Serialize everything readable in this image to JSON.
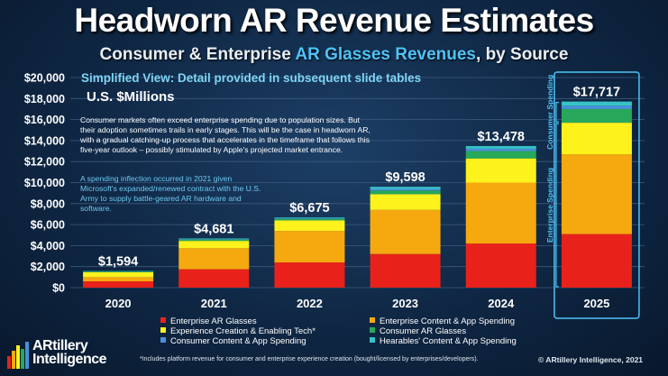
{
  "header": {
    "title": "Headworn AR Revenue Estimates",
    "subtitle_pre": "Consumer & Enterprise ",
    "subtitle_highlight": "AR Glasses Revenues",
    "subtitle_post": ", by Source",
    "view_note": "Simplified View: Detail provided in subsequent slide tables",
    "units": "U.S. $Millions"
  },
  "annotations": {
    "paragraph1": "Consumer markets often exceed enterprise spending due to population sizes. But their adoption sometimes trails in early stages. This will be the case in headworn AR, with a gradual catching-up process that accelerates in the timeframe that follows this five-year outlook – possibly stimulated by Apple's projected market entrance.",
    "paragraph2": "A spending inflection occurred in 2021 given Microsoft's expanded/renewed contract with the U.S. Army to supply battle-geared AR hardware and software.",
    "bracket_consumer": "Consumer Spending",
    "bracket_enterprise": "Enterprise Spending"
  },
  "chart_data": {
    "type": "bar",
    "stacked": true,
    "categories": [
      "2020",
      "2021",
      "2022",
      "2023",
      "2024",
      "2025"
    ],
    "totals": [
      1594,
      4681,
      6675,
      9598,
      13478,
      17717
    ],
    "total_labels": [
      "$1,594",
      "$4,681",
      "$6,675",
      "$9,598",
      "$13,478",
      "$17,717"
    ],
    "y_ticks": [
      "$0",
      "$2,000",
      "$4,000",
      "$6,000",
      "$8,000",
      "$10,000",
      "$12,000",
      "$14,000",
      "$16,000",
      "$18,000",
      "$20,000"
    ],
    "ylim": [
      0,
      20000
    ],
    "grid": true,
    "series": [
      {
        "name": "Enterprise AR Glasses",
        "color": "#e8221a",
        "values": [
          600,
          1750,
          2400,
          3200,
          4200,
          5100
        ]
      },
      {
        "name": "Enterprise Content & App Spending",
        "color": "#f5a90f",
        "values": [
          400,
          2000,
          3000,
          4200,
          5800,
          7600
        ]
      },
      {
        "name": "Experience Creation & Enabling Tech*",
        "color": "#fdf21c",
        "values": [
          460,
          700,
          1000,
          1500,
          2300,
          3000
        ]
      },
      {
        "name": "Consumer AR Glasses",
        "color": "#27a85a",
        "values": [
          80,
          140,
          150,
          350,
          700,
          1300
        ]
      },
      {
        "name": "Consumer Content & App Spending",
        "color": "#4a90d9",
        "values": [
          24,
          41,
          45,
          148,
          228,
          317
        ]
      },
      {
        "name": "Hearables' Content & App Spending",
        "color": "#36c3c7",
        "values": [
          30,
          50,
          80,
          200,
          250,
          400
        ]
      }
    ]
  },
  "footer": {
    "logo_line1": "ARtillery",
    "logo_line2": "Intelligence",
    "footnote": "*Includes platform revenue for consumer and enterprise experience creation (bought/licensed by enterprises/developers).",
    "copyright": "© ARtillery Intelligence, 2021"
  },
  "colors": {
    "accent": "#4fc3f7",
    "background": "#0f2744"
  }
}
